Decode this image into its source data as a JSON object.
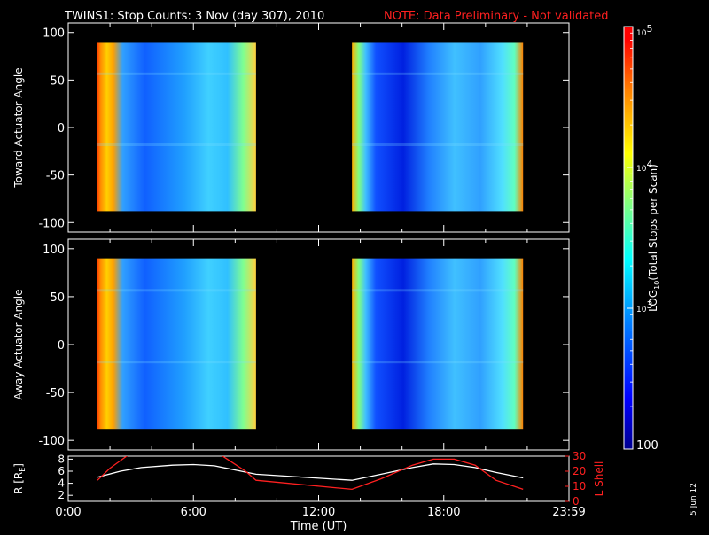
{
  "header": {
    "title": "TWINS1: Stop Counts:  3 Nov (day 307), 2010",
    "note": "NOTE: Data Preliminary - Not validated"
  },
  "footer": {
    "date_stamp": "5 Jun 12"
  },
  "chart_data": [
    {
      "type": "heatmap",
      "ylabel": "Toward Actuator Angle",
      "ylim": [
        -110,
        110
      ],
      "yticks": [
        100,
        50,
        0,
        -50,
        -100
      ],
      "xlim": [
        0,
        24
      ],
      "data_blocks_hours": [
        [
          1.4,
          9.0
        ],
        [
          13.6,
          21.8
        ]
      ],
      "data_angle_range": [
        -88,
        90
      ]
    },
    {
      "type": "heatmap",
      "ylabel": "Away Actuator Angle",
      "ylim": [
        -110,
        110
      ],
      "yticks": [
        100,
        50,
        0,
        -50,
        -100
      ],
      "xlim": [
        0,
        24
      ],
      "data_blocks_hours": [
        [
          1.4,
          9.0
        ],
        [
          13.6,
          21.8
        ]
      ],
      "data_angle_range": [
        -88,
        90
      ]
    },
    {
      "type": "line",
      "xlabel": "Time (UT)",
      "xlim": [
        0,
        24
      ],
      "xticks": [
        {
          "v": 0,
          "label": "0:00"
        },
        {
          "v": 6,
          "label": "6:00"
        },
        {
          "v": 12,
          "label": "12:00"
        },
        {
          "v": 18,
          "label": "18:00"
        },
        {
          "v": 24,
          "label": "23:59"
        }
      ],
      "left_axis": {
        "label": "R [R",
        "label_sub": "E",
        "label_end": "]",
        "ylim": [
          1,
          8.5
        ],
        "ticks": [
          8,
          6,
          4,
          2
        ],
        "color": "#ffffff"
      },
      "right_axis": {
        "label": "L Shell",
        "ylim": [
          0,
          30
        ],
        "ticks": [
          30,
          20,
          10,
          0
        ],
        "color": "#ff2020"
      },
      "series": [
        {
          "axis": "left",
          "color": "#ffffff",
          "x": [
            1.4,
            2.5,
            3.5,
            5.0,
            6.0,
            7.0,
            8.0,
            9.0,
            13.6,
            15.0,
            16.5,
            17.5,
            18.5,
            19.5,
            20.5,
            21.8
          ],
          "y": [
            5.0,
            6.0,
            6.6,
            7.0,
            7.1,
            6.9,
            6.2,
            5.5,
            4.5,
            5.5,
            6.6,
            7.2,
            7.1,
            6.6,
            5.8,
            4.9
          ]
        },
        {
          "axis": "right",
          "color": "#ff2020",
          "x": [
            1.4,
            2.0,
            2.8,
            3.2,
            6.8,
            7.4,
            8.5,
            9.0,
            13.6,
            15.0,
            16.5,
            17.5,
            18.5,
            19.5,
            20.5,
            21.8
          ],
          "y": [
            14,
            22,
            30,
            34,
            34,
            30,
            20,
            14,
            8,
            15,
            24,
            28,
            28,
            24,
            14,
            8
          ]
        }
      ]
    }
  ],
  "colorbar": {
    "label_prefix": "LOG",
    "label_sub": "10",
    "label_suffix": "(Total Stops per Scan)",
    "ticks": [
      {
        "v": 100,
        "base": "100"
      },
      {
        "v": 1000,
        "base": "10",
        "exp": "3"
      },
      {
        "v": 10000,
        "base": "10",
        "exp": "4"
      },
      {
        "v": 100000,
        "base": "10",
        "exp": "5"
      }
    ],
    "range": [
      100,
      100000
    ],
    "colors": [
      "#00008f",
      "#0000ff",
      "#0080ff",
      "#00ffff",
      "#80ff80",
      "#ffff00",
      "#ff8000",
      "#ff0000",
      "#ff0000"
    ]
  }
}
